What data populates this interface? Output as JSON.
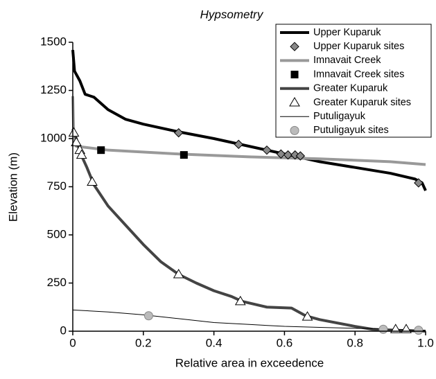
{
  "chart_data": {
    "type": "line",
    "title": "Hypsometry",
    "x_label": "Relative area in exceedence",
    "y_label": "Elevation (m)",
    "xlim": [
      0,
      1
    ],
    "ylim": [
      0,
      1500
    ],
    "xticks": [
      0,
      0.2,
      0.4,
      0.6,
      0.8,
      {
        "value": 1,
        "label": "1.0"
      }
    ],
    "yticks": [
      0,
      250,
      500,
      750,
      1000,
      1250,
      1500
    ],
    "grid": false,
    "legend": "upper right",
    "series": [
      {
        "name": "Upper Kuparuk",
        "type": "line",
        "color": "#000000",
        "width": 4,
        "x": [
          0,
          0.005,
          0.02,
          0.035,
          0.06,
          0.1,
          0.15,
          0.2,
          0.3,
          0.4,
          0.5,
          0.6,
          0.7,
          0.8,
          0.9,
          0.97,
          0.99,
          1.0
        ],
        "values": [
          1460,
          1350,
          1300,
          1230,
          1215,
          1150,
          1100,
          1075,
          1035,
          1000,
          960,
          920,
          880,
          850,
          820,
          790,
          770,
          730
        ]
      },
      {
        "name": "Upper Kuparuk sites",
        "type": "scatter",
        "marker": "diamond",
        "color": "#888888",
        "x": [
          0.3,
          0.47,
          0.55,
          0.59,
          0.61,
          0.63,
          0.645,
          0.98
        ],
        "values": [
          1030,
          970,
          940,
          920,
          915,
          915,
          910,
          770
        ]
      },
      {
        "name": "Imnavait Creek",
        "type": "line",
        "color": "#999999",
        "width": 4,
        "x": [
          0,
          0.003,
          0.01,
          0.1,
          0.3,
          0.5,
          0.7,
          0.9,
          1.0
        ],
        "values": [
          1220,
          1000,
          960,
          940,
          920,
          905,
          895,
          880,
          865
        ]
      },
      {
        "name": "Imnavait Creek sites",
        "type": "scatter",
        "marker": "square",
        "color": "#000000",
        "x": [
          0.08,
          0.315
        ],
        "values": [
          940,
          915
        ]
      },
      {
        "name": "Greater Kuparuk",
        "type": "line",
        "color": "#444444",
        "width": 4,
        "x": [
          0,
          0.01,
          0.02,
          0.04,
          0.06,
          0.1,
          0.15,
          0.2,
          0.25,
          0.3,
          0.35,
          0.4,
          0.45,
          0.48,
          0.55,
          0.62,
          0.66,
          0.7,
          0.8,
          0.85,
          0.9,
          1.0
        ],
        "values": [
          1050,
          1000,
          930,
          850,
          760,
          650,
          550,
          450,
          360,
          295,
          250,
          210,
          180,
          155,
          125,
          120,
          80,
          60,
          25,
          10,
          5,
          0
        ]
      },
      {
        "name": "Greater Kuparuk sites",
        "type": "scatter",
        "marker": "triangle",
        "color": "#ffffff",
        "x": [
          0.003,
          0.01,
          0.02,
          0.025,
          0.055,
          0.3,
          0.475,
          0.665,
          0.915,
          0.945
        ],
        "values": [
          1030,
          980,
          940,
          915,
          775,
          295,
          155,
          75,
          10,
          10
        ]
      },
      {
        "name": "Putuligayuk",
        "type": "line",
        "color": "#000000",
        "width": 1,
        "x": [
          0,
          0.1,
          0.2,
          0.3,
          0.4,
          0.5,
          0.6,
          0.7,
          0.8,
          0.88,
          0.95,
          1.0
        ],
        "values": [
          110,
          100,
          85,
          65,
          45,
          35,
          25,
          20,
          15,
          12,
          8,
          5
        ]
      },
      {
        "name": "Putuligayuk sites",
        "type": "scatter",
        "marker": "circle",
        "color": "#bbbbbb",
        "x": [
          0.215,
          0.88,
          0.98
        ],
        "values": [
          80,
          10,
          5
        ]
      }
    ]
  }
}
